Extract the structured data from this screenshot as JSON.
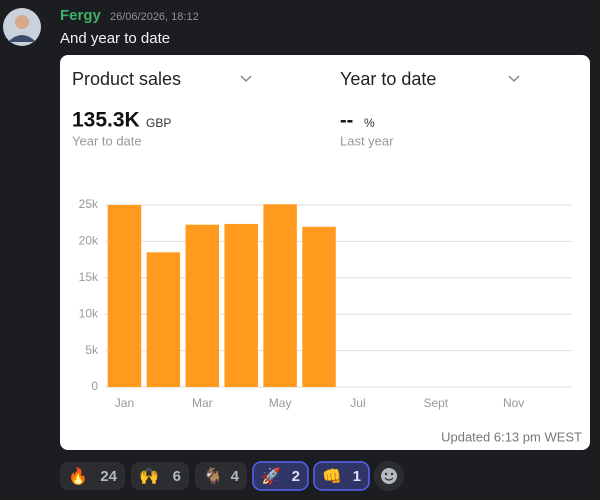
{
  "message": {
    "author": "Fergy",
    "timestamp": "26/06/2026, 18:12",
    "text": "And year to date"
  },
  "card": {
    "metric": "Product sales",
    "period": "Year to date",
    "value": "135.3K",
    "unit": "GBP",
    "value_caption": "Year to date",
    "comparison": "--",
    "comparison_unit": "%",
    "comparison_caption": "Last year",
    "footer": "Updated 6:13 pm WEST"
  },
  "chart_data": {
    "type": "bar",
    "categories": [
      "Jan",
      null,
      "Mar",
      null,
      "May",
      null,
      "Jul",
      null,
      "Sept",
      null,
      "Nov",
      null
    ],
    "values": [
      25000,
      18500,
      22300,
      22400,
      25100,
      22000,
      null,
      null,
      null,
      null,
      null,
      null
    ],
    "color": "#ff9a1f",
    "ylim": [
      0,
      25000
    ],
    "yticks": [
      0,
      {
        "value": 5000,
        "label": "5k"
      },
      {
        "value": 10000,
        "label": "10k"
      },
      {
        "value": 15000,
        "label": "15k"
      },
      {
        "value": 20000,
        "label": "20k"
      },
      {
        "value": 25000,
        "label": "25k"
      }
    ],
    "grid": true
  },
  "reactions": [
    {
      "emoji": "🔥",
      "count": 24,
      "selected": false
    },
    {
      "emoji": "🙌",
      "count": 6,
      "selected": false
    },
    {
      "emoji": "🐐",
      "count": 4,
      "selected": false
    },
    {
      "emoji": "🚀",
      "count": 2,
      "selected": true
    },
    {
      "emoji": "👊",
      "count": 1,
      "selected": true
    }
  ]
}
